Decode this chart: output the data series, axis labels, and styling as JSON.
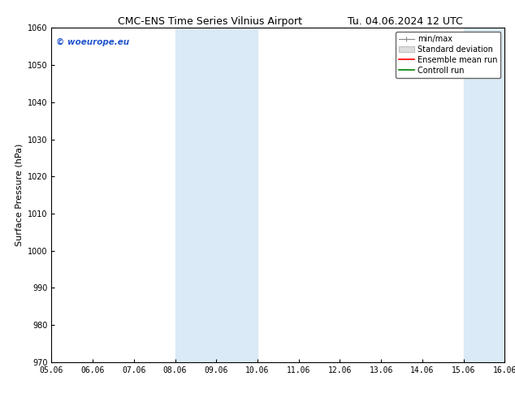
{
  "title_left": "CMC-ENS Time Series Vilnius Airport",
  "title_right": "Tu. 04.06.2024 12 UTC",
  "ylabel": "Surface Pressure (hPa)",
  "ylim": [
    970,
    1060
  ],
  "yticks": [
    970,
    980,
    990,
    1000,
    1010,
    1020,
    1030,
    1040,
    1050,
    1060
  ],
  "xtick_labels": [
    "05.06",
    "06.06",
    "07.06",
    "08.06",
    "09.06",
    "10.06",
    "11.06",
    "12.06",
    "13.06",
    "14.06",
    "15.06",
    "16.06"
  ],
  "xtick_positions": [
    0,
    1,
    2,
    3,
    4,
    5,
    6,
    7,
    8,
    9,
    10,
    11
  ],
  "shaded_regions": [
    {
      "xmin": 3,
      "xmax": 5,
      "color": "#daeaf6"
    },
    {
      "xmin": 10,
      "xmax": 11,
      "color": "#daeaf6"
    }
  ],
  "watermark_text": "© woeurope.eu",
  "watermark_color": "#2255cc",
  "bg_color": "#ffffff",
  "grid_color": "#cccccc",
  "title_fontsize": 9,
  "tick_fontsize": 7,
  "ylabel_fontsize": 8,
  "legend_fontsize": 7
}
